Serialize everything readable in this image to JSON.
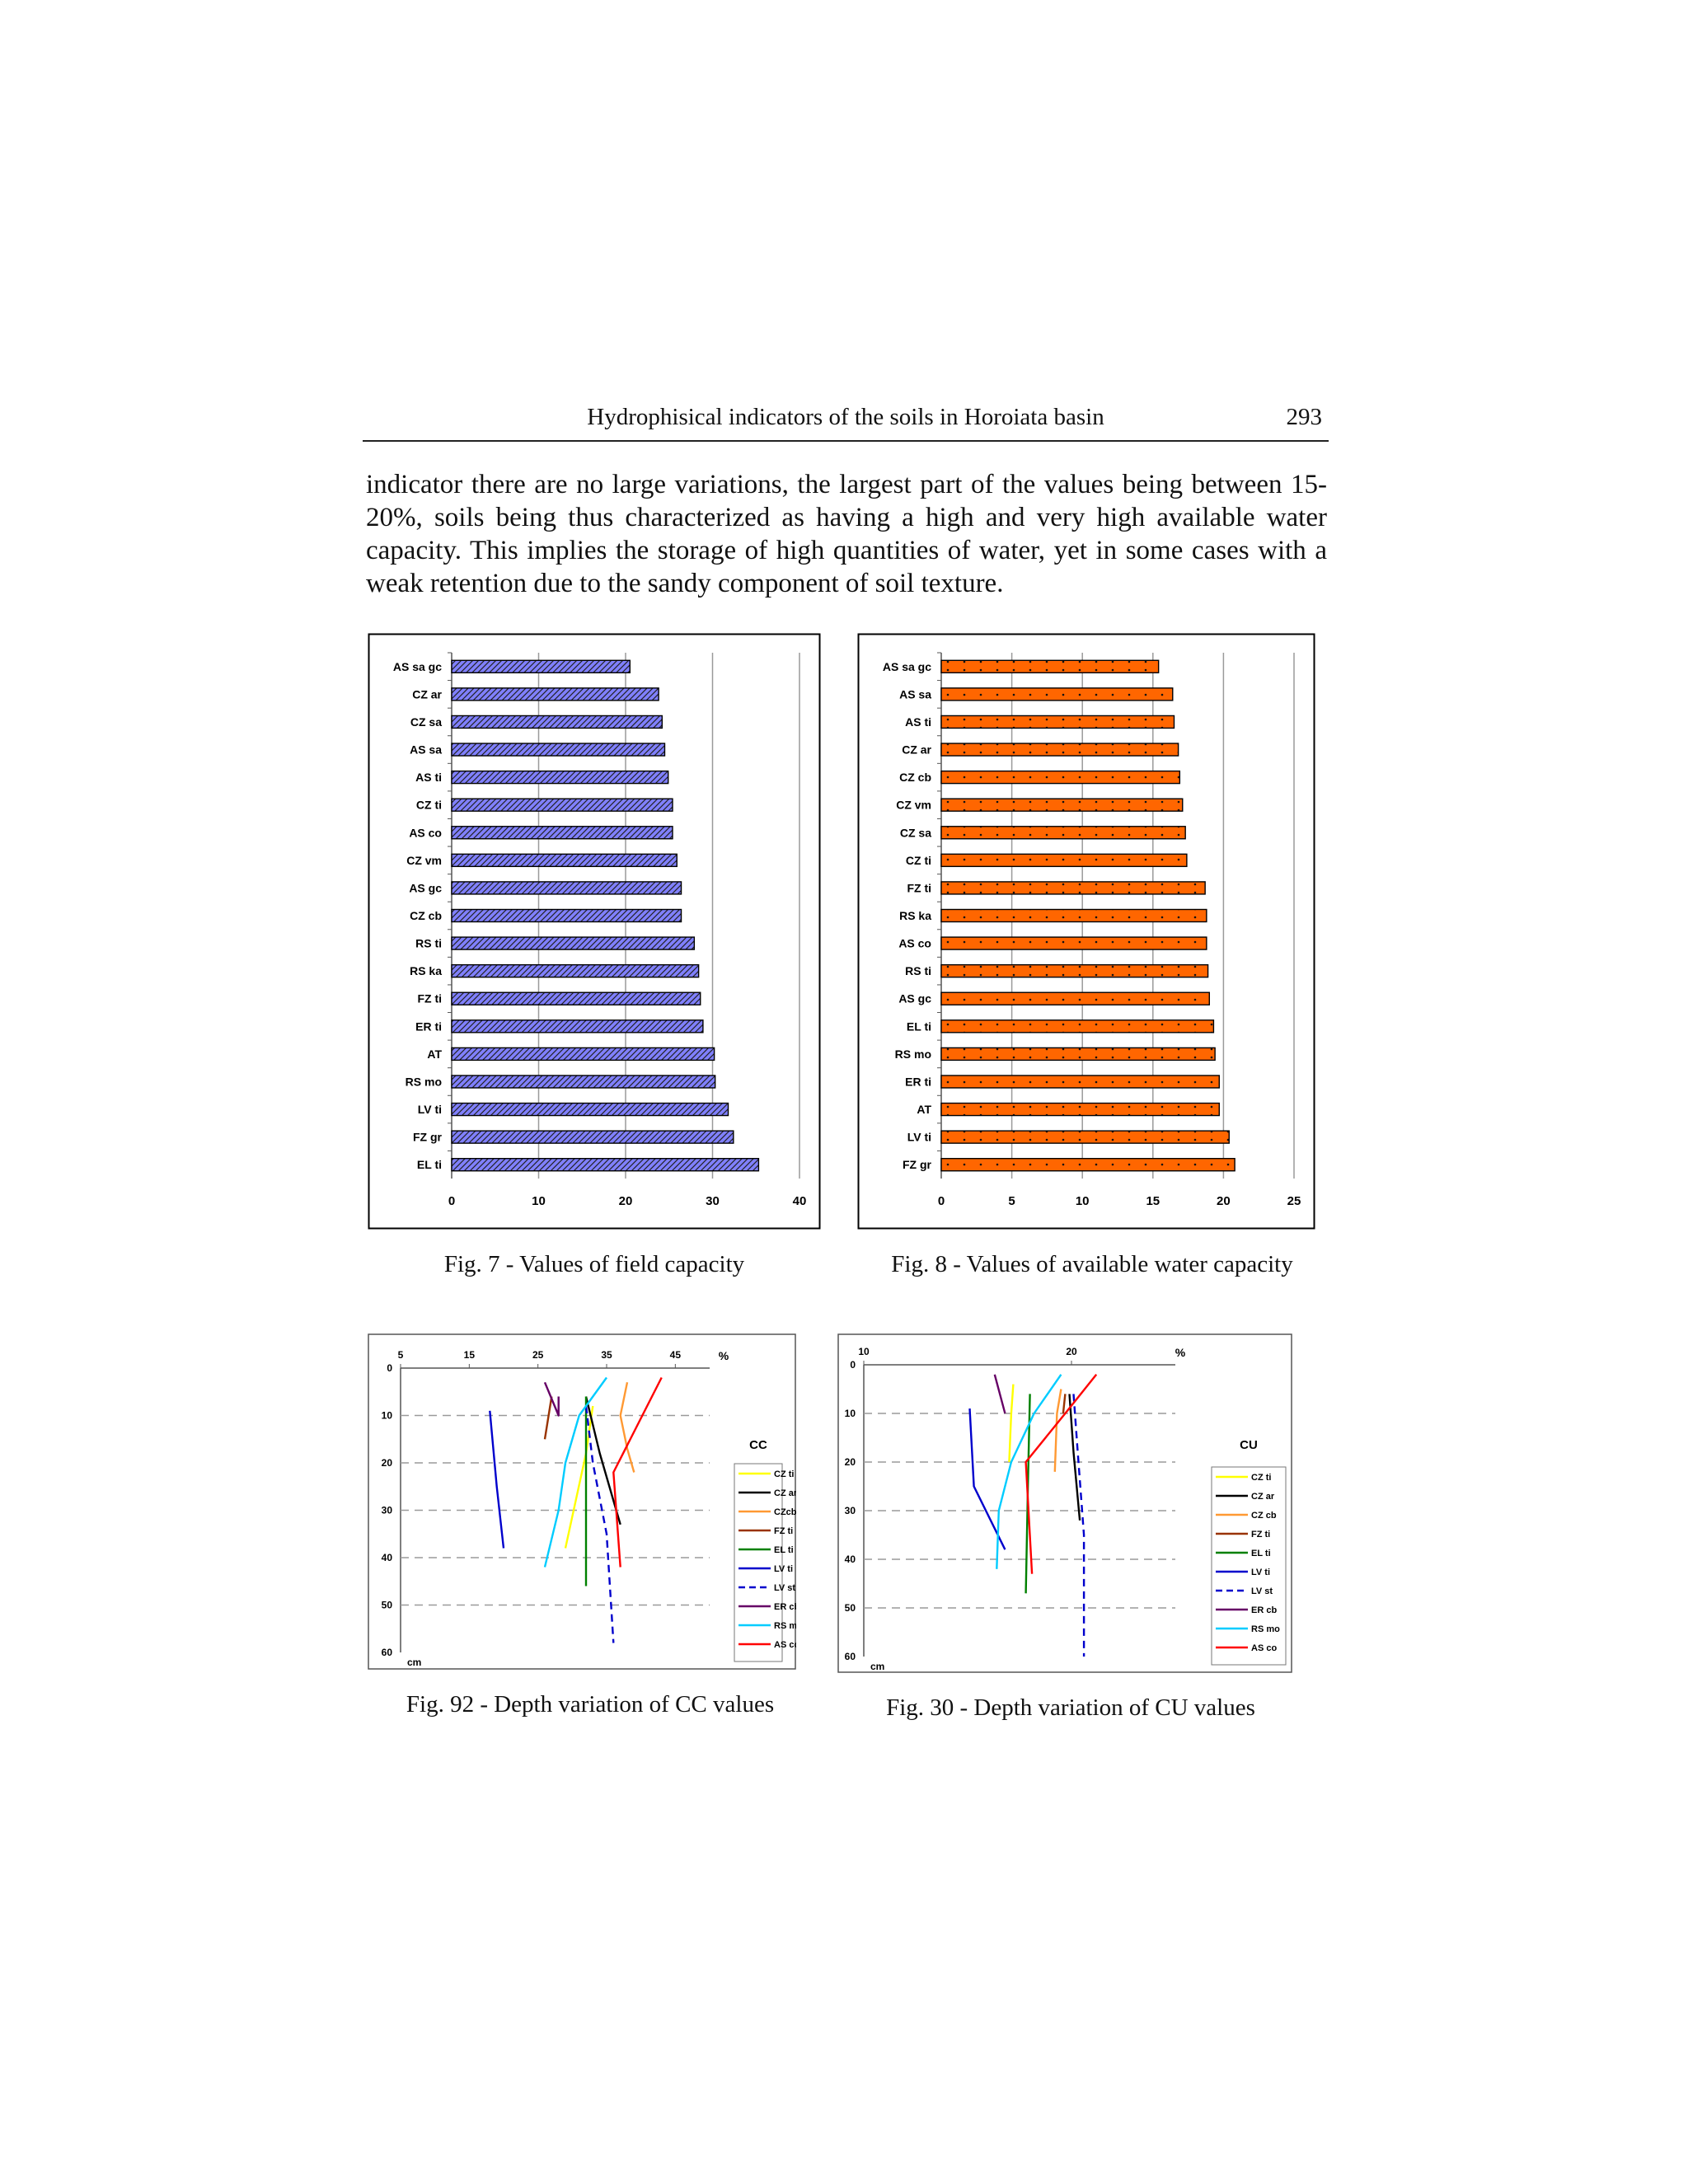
{
  "header": {
    "title": "Hydrophisical indicators of the soils in Horoiata basin",
    "page_number": "293"
  },
  "paragraph": "indicator there are no large variations, the largest part of the values being between 15-20%, soils being thus characterized as having a high and very high available water capacity. This implies the storage of high quantities of water, yet in some cases with a weak retention due to the sandy component of soil texture.",
  "colors": {
    "fig7_bar": "#8080ff",
    "fig8_bar": "#ff6600"
  },
  "captions": {
    "fig7": "Fig. 7 - Values of field capacity",
    "fig8": "Fig. 8 - Values of available water capacity",
    "fig92": "Fig. 92 - Depth variation of CC values",
    "fig30": "Fig. 30 - Depth variation of CU values"
  },
  "chart_data": [
    {
      "id": "fig7",
      "type": "bar",
      "orientation": "horizontal",
      "categories": [
        "AS sa gc",
        "CZ ar",
        "CZ sa",
        "AS sa",
        "AS ti",
        "CZ ti",
        "AS co",
        "CZ vm",
        "AS gc",
        "CZ cb",
        "RS ti",
        "RS ka",
        "FZ ti",
        "ER ti",
        "AT",
        "RS mo",
        "LV ti",
        "FZ gr",
        "EL ti"
      ],
      "values": [
        20.5,
        23.8,
        24.2,
        24.5,
        24.9,
        25.4,
        25.4,
        25.9,
        26.4,
        26.4,
        27.9,
        28.4,
        28.6,
        28.9,
        30.2,
        30.3,
        31.8,
        32.4,
        35.3
      ],
      "xlim": [
        0,
        40
      ],
      "xticks": [
        "0",
        "10",
        "20",
        "30",
        "40"
      ],
      "grid": true
    },
    {
      "id": "fig8",
      "type": "bar",
      "orientation": "horizontal",
      "categories": [
        "AS sa gc",
        "AS sa",
        "AS ti",
        "CZ ar",
        "CZ cb",
        "CZ vm",
        "CZ sa",
        "CZ ti",
        "FZ ti",
        "RS ka",
        "AS co",
        "RS ti",
        "AS gc",
        "EL ti",
        "RS mo",
        "ER ti",
        "AT",
        "LV ti",
        "FZ gr"
      ],
      "values": [
        15.4,
        16.4,
        16.5,
        16.8,
        16.9,
        17.1,
        17.3,
        17.4,
        18.7,
        18.8,
        18.8,
        18.9,
        19.0,
        19.3,
        19.4,
        19.7,
        19.7,
        20.4,
        20.8
      ],
      "xlim": [
        0,
        25
      ],
      "xticks": [
        "0",
        "5",
        "10",
        "15",
        "20",
        "25"
      ],
      "grid": true
    },
    {
      "id": "fig92",
      "type": "line",
      "title": "CC",
      "x_unit": "%",
      "y_unit": "cm",
      "xlim": [
        5,
        50
      ],
      "ylim": [
        0,
        60
      ],
      "xticks": [
        "5",
        "15",
        "25",
        "35",
        "45"
      ],
      "yticks": [
        "0",
        "10",
        "20",
        "30",
        "40",
        "50",
        "60"
      ],
      "series": [
        {
          "name": "CZ ti",
          "color": "#ffff00",
          "dash": false,
          "points": [
            [
              33,
              8
            ],
            [
              32,
              18
            ],
            [
              29,
              38
            ]
          ]
        },
        {
          "name": "CZ ar",
          "color": "#000000",
          "dash": false,
          "points": [
            [
              32,
              6
            ],
            [
              34,
              18
            ],
            [
              37,
              33
            ]
          ]
        },
        {
          "name": "CZcb",
          "color": "#ff9933",
          "dash": false,
          "points": [
            [
              38,
              3
            ],
            [
              37,
              10
            ],
            [
              38,
              17
            ],
            [
              39,
              22
            ]
          ]
        },
        {
          "name": "FZ ti",
          "color": "#993300",
          "dash": false,
          "points": [
            [
              27,
              6
            ],
            [
              26,
              15
            ]
          ]
        },
        {
          "name": "EL ti",
          "color": "#008000",
          "dash": false,
          "points": [
            [
              32,
              6
            ],
            [
              32,
              25
            ],
            [
              32,
              46
            ]
          ]
        },
        {
          "name": "LV ti",
          "color": "#0000cc",
          "dash": false,
          "points": [
            [
              18,
              9
            ],
            [
              19,
              25
            ],
            [
              20,
              38
            ]
          ]
        },
        {
          "name": "LV st",
          "color": "#0000cc",
          "dash": true,
          "points": [
            [
              32,
              8
            ],
            [
              33,
              20
            ],
            [
              35,
              35
            ],
            [
              36,
              58
            ]
          ]
        },
        {
          "name": "ER cb",
          "color": "#660066",
          "dash": false,
          "points": [
            [
              26,
              3
            ],
            [
              28,
              10
            ],
            [
              28,
              6
            ]
          ]
        },
        {
          "name": "RS mo",
          "color": "#00ccff",
          "dash": false,
          "points": [
            [
              35,
              2
            ],
            [
              31,
              10
            ],
            [
              29,
              20
            ],
            [
              28,
              30
            ],
            [
              26,
              42
            ]
          ]
        },
        {
          "name": "AS co",
          "color": "#ff0000",
          "dash": false,
          "points": [
            [
              43,
              2
            ],
            [
              36,
              22
            ],
            [
              37,
              42
            ]
          ]
        }
      ]
    },
    {
      "id": "fig30",
      "type": "line",
      "title": "CU",
      "x_unit": "%",
      "y_unit": "cm",
      "xlim": [
        10,
        25
      ],
      "ylim": [
        0,
        60
      ],
      "xticks": [
        "10",
        "20"
      ],
      "yticks": [
        "0",
        "10",
        "20",
        "30",
        "40",
        "50",
        "60"
      ],
      "series": [
        {
          "name": "CZ ti",
          "color": "#ffff00",
          "dash": false,
          "points": [
            [
              17.2,
              4
            ],
            [
              17.1,
              10
            ],
            [
              17.0,
              20
            ]
          ]
        },
        {
          "name": "CZ ar",
          "color": "#000000",
          "dash": false,
          "points": [
            [
              19.9,
              6
            ],
            [
              20.1,
              18
            ],
            [
              20.4,
              32
            ]
          ]
        },
        {
          "name": "CZ cb",
          "color": "#ff9933",
          "dash": false,
          "points": [
            [
              19.5,
              5
            ],
            [
              19.3,
              10
            ],
            [
              19.2,
              22
            ]
          ]
        },
        {
          "name": "FZ ti",
          "color": "#993300",
          "dash": false,
          "points": [
            [
              19.7,
              6
            ],
            [
              19.6,
              10
            ]
          ]
        },
        {
          "name": "EL ti",
          "color": "#008000",
          "dash": false,
          "points": [
            [
              18.0,
              6
            ],
            [
              17.9,
              25
            ],
            [
              17.8,
              47
            ]
          ]
        },
        {
          "name": "LV ti",
          "color": "#0000cc",
          "dash": false,
          "points": [
            [
              15.1,
              9
            ],
            [
              15.3,
              25
            ],
            [
              16.8,
              38
            ]
          ]
        },
        {
          "name": "LV st",
          "color": "#0000cc",
          "dash": true,
          "points": [
            [
              20.1,
              6
            ],
            [
              20.3,
              18
            ],
            [
              20.6,
              35
            ],
            [
              20.6,
              60
            ]
          ]
        },
        {
          "name": "ER cb",
          "color": "#660066",
          "dash": false,
          "points": [
            [
              16.3,
              2
            ],
            [
              16.8,
              10
            ]
          ]
        },
        {
          "name": "RS mo",
          "color": "#00ccff",
          "dash": false,
          "points": [
            [
              19.5,
              2
            ],
            [
              18.2,
              10
            ],
            [
              17.1,
              20
            ],
            [
              16.5,
              30
            ],
            [
              16.4,
              42
            ]
          ]
        },
        {
          "name": "AS co",
          "color": "#ff0000",
          "dash": false,
          "points": [
            [
              21.2,
              2
            ],
            [
              19.7,
              10
            ],
            [
              17.8,
              20
            ],
            [
              18.1,
              43
            ]
          ]
        }
      ]
    }
  ]
}
